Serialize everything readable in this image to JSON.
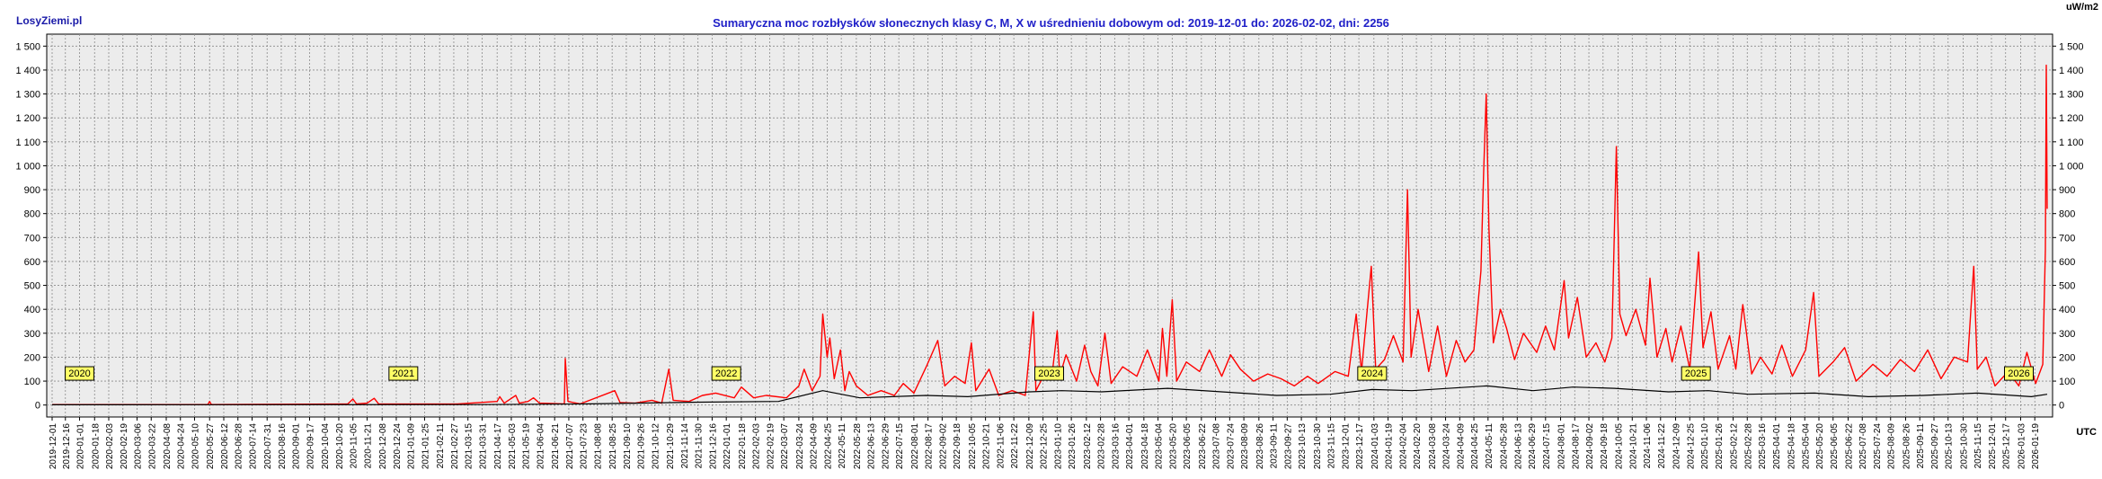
{
  "header": {
    "site_name": "LosyZiemi.pl",
    "unit": "uW/m2",
    "utc": "UTC"
  },
  "chart_data": {
    "type": "line",
    "title": "Sumaryczna moc rozbłysków słonecznych klasy C, M, X w uśrednieniu dobowym od: 2019-12-01 do: 2026-02-02, dni: 2256",
    "xlabel": "",
    "ylabel": "",
    "x_range": [
      "2019-12-01",
      "2026-02-02"
    ],
    "ylim": [
      -50,
      1550
    ],
    "y_ticks": [
      {
        "value": 0,
        "label": "0"
      },
      {
        "value": 100,
        "label": "100"
      },
      {
        "value": 200,
        "label": "200"
      },
      {
        "value": 300,
        "label": "300"
      },
      {
        "value": 400,
        "label": "400"
      },
      {
        "value": 500,
        "label": "500"
      },
      {
        "value": 600,
        "label": "600"
      },
      {
        "value": 700,
        "label": "700"
      },
      {
        "value": 800,
        "label": "800"
      },
      {
        "value": 900,
        "label": "900"
      },
      {
        "value": 1000,
        "label": "1 000"
      },
      {
        "value": 1100,
        "label": "1 100"
      },
      {
        "value": 1200,
        "label": "1 200"
      },
      {
        "value": 1300,
        "label": "1 300"
      },
      {
        "value": 1400,
        "label": "1 400"
      },
      {
        "value": 1500,
        "label": "1 500"
      }
    ],
    "x_tick_labels": [
      "2019-12-01",
      "2019-12-16",
      "2020-01-01",
      "2020-01-18",
      "2020-02-03",
      "2020-02-19",
      "2020-03-06",
      "2020-03-22",
      "2020-04-08",
      "2020-04-24",
      "2020-05-10",
      "2020-05-27",
      "2020-06-12",
      "2020-06-28",
      "2020-07-14",
      "2020-07-31",
      "2020-08-16",
      "2020-09-01",
      "2020-09-17",
      "2020-10-04",
      "2020-10-20",
      "2020-11-05",
      "2020-11-21",
      "2020-12-08",
      "2020-12-24",
      "2021-01-09",
      "2021-01-25",
      "2021-02-11",
      "2021-02-27",
      "2021-03-15",
      "2021-03-31",
      "2021-04-17",
      "2021-05-03",
      "2021-05-19",
      "2021-06-04",
      "2021-06-21",
      "2021-07-07",
      "2021-07-23",
      "2021-08-08",
      "2021-08-25",
      "2021-09-10",
      "2021-09-26",
      "2021-10-12",
      "2021-10-29",
      "2021-11-14",
      "2021-11-30",
      "2021-12-16",
      "2022-01-01",
      "2022-01-18",
      "2022-02-03",
      "2022-02-19",
      "2022-03-07",
      "2022-03-24",
      "2022-04-09",
      "2022-04-25",
      "2022-05-11",
      "2022-05-28",
      "2022-06-13",
      "2022-06-29",
      "2022-07-15",
      "2022-08-01",
      "2022-08-17",
      "2022-09-02",
      "2022-09-18",
      "2022-10-05",
      "2022-10-21",
      "2022-11-06",
      "2022-11-22",
      "2022-12-09",
      "2022-12-25",
      "2023-01-10",
      "2023-01-26",
      "2023-02-12",
      "2023-02-28",
      "2023-03-16",
      "2023-04-01",
      "2023-04-18",
      "2023-05-04",
      "2023-05-20",
      "2023-06-05",
      "2023-06-22",
      "2023-07-08",
      "2023-07-24",
      "2023-08-09",
      "2023-08-26",
      "2023-09-11",
      "2023-09-27",
      "2023-10-13",
      "2023-10-30",
      "2023-11-15",
      "2023-12-01",
      "2023-12-17",
      "2024-01-03",
      "2024-01-19",
      "2024-02-04",
      "2024-02-20",
      "2024-03-08",
      "2024-03-24",
      "2024-04-09",
      "2024-04-25",
      "2024-05-11",
      "2024-05-28",
      "2024-06-13",
      "2024-06-29",
      "2024-07-15",
      "2024-08-01",
      "2024-08-17",
      "2024-09-02",
      "2024-09-18",
      "2024-10-05",
      "2024-10-21",
      "2024-11-06",
      "2024-11-22",
      "2024-12-09",
      "2024-12-25",
      "2025-01-10",
      "2025-01-26",
      "2025-02-12",
      "2025-02-28",
      "2025-03-16",
      "2025-04-01",
      "2025-04-18",
      "2025-05-04",
      "2025-05-20",
      "2025-06-05",
      "2025-06-22",
      "2025-07-08",
      "2025-07-24",
      "2025-08-09",
      "2025-08-26",
      "2025-09-11",
      "2025-09-27",
      "2025-10-13",
      "2025-10-30",
      "2025-11-15",
      "2025-12-01",
      "2025-12-17",
      "2026-01-03",
      "2026-01-19"
    ],
    "year_markers": [
      {
        "label": "2020",
        "date": "2020-01-01"
      },
      {
        "label": "2021",
        "date": "2021-01-01"
      },
      {
        "label": "2022",
        "date": "2022-01-01"
      },
      {
        "label": "2023",
        "date": "2023-01-01"
      },
      {
        "label": "2024",
        "date": "2024-01-01"
      },
      {
        "label": "2025",
        "date": "2025-01-01"
      },
      {
        "label": "2026",
        "date": "2026-01-01"
      }
    ],
    "grid": true,
    "series": [
      {
        "name": "",
        "color": "#ff0000",
        "points": [
          [
            "2019-12-01",
            2
          ],
          [
            "2020-03-01",
            2
          ],
          [
            "2020-05-25",
            2
          ],
          [
            "2020-05-27",
            15
          ],
          [
            "2020-05-29",
            2
          ],
          [
            "2020-10-30",
            4
          ],
          [
            "2020-11-05",
            25
          ],
          [
            "2020-11-09",
            5
          ],
          [
            "2020-11-21",
            8
          ],
          [
            "2020-11-29",
            28
          ],
          [
            "2020-12-04",
            5
          ],
          [
            "2021-03-01",
            4
          ],
          [
            "2021-04-17",
            15
          ],
          [
            "2021-04-20",
            35
          ],
          [
            "2021-04-25",
            8
          ],
          [
            "2021-05-08",
            40
          ],
          [
            "2021-05-12",
            8
          ],
          [
            "2021-05-22",
            15
          ],
          [
            "2021-05-28",
            30
          ],
          [
            "2021-06-04",
            8
          ],
          [
            "2021-07-02",
            5
          ],
          [
            "2021-07-03",
            195
          ],
          [
            "2021-07-06",
            15
          ],
          [
            "2021-07-20",
            5
          ],
          [
            "2021-08-28",
            60
          ],
          [
            "2021-09-03",
            10
          ],
          [
            "2021-09-20",
            8
          ],
          [
            "2021-10-09",
            20
          ],
          [
            "2021-10-20",
            8
          ],
          [
            "2021-10-28",
            150
          ],
          [
            "2021-11-02",
            20
          ],
          [
            "2021-11-20",
            15
          ],
          [
            "2021-12-05",
            40
          ],
          [
            "2021-12-20",
            50
          ],
          [
            "2022-01-10",
            30
          ],
          [
            "2022-01-18",
            75
          ],
          [
            "2022-02-01",
            30
          ],
          [
            "2022-02-15",
            40
          ],
          [
            "2022-03-10",
            30
          ],
          [
            "2022-03-24",
            80
          ],
          [
            "2022-03-30",
            150
          ],
          [
            "2022-04-08",
            60
          ],
          [
            "2022-04-17",
            120
          ],
          [
            "2022-04-20",
            380
          ],
          [
            "2022-04-25",
            200
          ],
          [
            "2022-04-28",
            280
          ],
          [
            "2022-05-03",
            110
          ],
          [
            "2022-05-10",
            230
          ],
          [
            "2022-05-15",
            60
          ],
          [
            "2022-05-20",
            140
          ],
          [
            "2022-05-28",
            80
          ],
          [
            "2022-06-10",
            40
          ],
          [
            "2022-06-25",
            60
          ],
          [
            "2022-07-10",
            40
          ],
          [
            "2022-07-20",
            90
          ],
          [
            "2022-08-01",
            50
          ],
          [
            "2022-08-15",
            160
          ],
          [
            "2022-08-28",
            270
          ],
          [
            "2022-09-05",
            80
          ],
          [
            "2022-09-16",
            120
          ],
          [
            "2022-09-28",
            90
          ],
          [
            "2022-10-05",
            260
          ],
          [
            "2022-10-10",
            60
          ],
          [
            "2022-10-25",
            150
          ],
          [
            "2022-11-05",
            40
          ],
          [
            "2022-11-20",
            60
          ],
          [
            "2022-12-05",
            40
          ],
          [
            "2022-12-14",
            390
          ],
          [
            "2022-12-17",
            60
          ],
          [
            "2022-12-24",
            110
          ],
          [
            "2023-01-05",
            150
          ],
          [
            "2023-01-10",
            310
          ],
          [
            "2023-01-13",
            120
          ],
          [
            "2023-01-20",
            210
          ],
          [
            "2023-02-01",
            100
          ],
          [
            "2023-02-10",
            250
          ],
          [
            "2023-02-17",
            140
          ],
          [
            "2023-02-25",
            80
          ],
          [
            "2023-03-05",
            300
          ],
          [
            "2023-03-12",
            90
          ],
          [
            "2023-03-25",
            160
          ],
          [
            "2023-04-10",
            120
          ],
          [
            "2023-04-22",
            230
          ],
          [
            "2023-05-05",
            100
          ],
          [
            "2023-05-09",
            320
          ],
          [
            "2023-05-14",
            120
          ],
          [
            "2023-05-20",
            440
          ],
          [
            "2023-05-25",
            100
          ],
          [
            "2023-06-05",
            180
          ],
          [
            "2023-06-20",
            140
          ],
          [
            "2023-07-01",
            230
          ],
          [
            "2023-07-15",
            120
          ],
          [
            "2023-07-25",
            210
          ],
          [
            "2023-08-05",
            150
          ],
          [
            "2023-08-20",
            100
          ],
          [
            "2023-09-05",
            130
          ],
          [
            "2023-09-20",
            110
          ],
          [
            "2023-10-05",
            80
          ],
          [
            "2023-10-20",
            120
          ],
          [
            "2023-11-01",
            90
          ],
          [
            "2023-11-20",
            140
          ],
          [
            "2023-12-05",
            120
          ],
          [
            "2023-12-14",
            380
          ],
          [
            "2023-12-20",
            140
          ],
          [
            "2023-12-31",
            580
          ],
          [
            "2024-01-05",
            150
          ],
          [
            "2024-01-15",
            190
          ],
          [
            "2024-01-25",
            290
          ],
          [
            "2024-02-05",
            180
          ],
          [
            "2024-02-10",
            900
          ],
          [
            "2024-02-14",
            200
          ],
          [
            "2024-02-22",
            400
          ],
          [
            "2024-03-05",
            140
          ],
          [
            "2024-03-15",
            330
          ],
          [
            "2024-03-25",
            120
          ],
          [
            "2024-04-05",
            270
          ],
          [
            "2024-04-15",
            180
          ],
          [
            "2024-04-25",
            230
          ],
          [
            "2024-05-03",
            560
          ],
          [
            "2024-05-06",
            970
          ],
          [
            "2024-05-09",
            1300
          ],
          [
            "2024-05-12",
            740
          ],
          [
            "2024-05-17",
            260
          ],
          [
            "2024-05-25",
            400
          ],
          [
            "2024-06-01",
            320
          ],
          [
            "2024-06-10",
            190
          ],
          [
            "2024-06-20",
            300
          ],
          [
            "2024-07-05",
            220
          ],
          [
            "2024-07-15",
            330
          ],
          [
            "2024-07-25",
            230
          ],
          [
            "2024-08-05",
            520
          ],
          [
            "2024-08-10",
            280
          ],
          [
            "2024-08-20",
            450
          ],
          [
            "2024-08-30",
            200
          ],
          [
            "2024-09-10",
            260
          ],
          [
            "2024-09-20",
            180
          ],
          [
            "2024-09-28",
            280
          ],
          [
            "2024-10-03",
            1080
          ],
          [
            "2024-10-07",
            380
          ],
          [
            "2024-10-14",
            290
          ],
          [
            "2024-10-25",
            400
          ],
          [
            "2024-11-05",
            250
          ],
          [
            "2024-11-10",
            530
          ],
          [
            "2024-11-18",
            200
          ],
          [
            "2024-11-28",
            320
          ],
          [
            "2024-12-05",
            180
          ],
          [
            "2024-12-15",
            330
          ],
          [
            "2024-12-25",
            150
          ],
          [
            "2025-01-04",
            640
          ],
          [
            "2025-01-09",
            240
          ],
          [
            "2025-01-18",
            390
          ],
          [
            "2025-01-26",
            150
          ],
          [
            "2025-02-08",
            290
          ],
          [
            "2025-02-15",
            150
          ],
          [
            "2025-02-23",
            420
          ],
          [
            "2025-03-05",
            130
          ],
          [
            "2025-03-15",
            200
          ],
          [
            "2025-03-28",
            130
          ],
          [
            "2025-04-08",
            250
          ],
          [
            "2025-04-20",
            120
          ],
          [
            "2025-05-05",
            230
          ],
          [
            "2025-05-14",
            470
          ],
          [
            "2025-05-20",
            120
          ],
          [
            "2025-06-05",
            180
          ],
          [
            "2025-06-18",
            240
          ],
          [
            "2025-07-01",
            100
          ],
          [
            "2025-07-20",
            170
          ],
          [
            "2025-08-05",
            120
          ],
          [
            "2025-08-20",
            190
          ],
          [
            "2025-09-05",
            140
          ],
          [
            "2025-09-20",
            230
          ],
          [
            "2025-10-05",
            110
          ],
          [
            "2025-10-20",
            200
          ],
          [
            "2025-11-04",
            180
          ],
          [
            "2025-11-08",
            410
          ],
          [
            "2025-11-11",
            580
          ],
          [
            "2025-11-15",
            150
          ],
          [
            "2025-11-25",
            200
          ],
          [
            "2025-12-05",
            80
          ],
          [
            "2025-12-20",
            140
          ],
          [
            "2026-01-01",
            80
          ],
          [
            "2026-01-10",
            220
          ],
          [
            "2026-01-20",
            90
          ],
          [
            "2026-01-28",
            170
          ],
          [
            "2026-01-31",
            650
          ],
          [
            "2026-02-01",
            1420
          ],
          [
            "2026-02-02",
            820
          ]
        ]
      },
      {
        "name": "",
        "color": "#000000",
        "points": [
          [
            "2019-12-01",
            1
          ],
          [
            "2021-04-01",
            2
          ],
          [
            "2021-08-01",
            5
          ],
          [
            "2021-12-01",
            12
          ],
          [
            "2022-03-01",
            15
          ],
          [
            "2022-04-20",
            60
          ],
          [
            "2022-06-01",
            30
          ],
          [
            "2022-08-15",
            40
          ],
          [
            "2022-10-01",
            35
          ],
          [
            "2022-12-10",
            55
          ],
          [
            "2023-01-15",
            60
          ],
          [
            "2023-03-01",
            55
          ],
          [
            "2023-05-15",
            70
          ],
          [
            "2023-07-15",
            55
          ],
          [
            "2023-09-15",
            40
          ],
          [
            "2023-11-15",
            45
          ],
          [
            "2024-01-01",
            65
          ],
          [
            "2024-02-15",
            60
          ],
          [
            "2024-05-10",
            80
          ],
          [
            "2024-07-01",
            60
          ],
          [
            "2024-08-15",
            75
          ],
          [
            "2024-10-01",
            70
          ],
          [
            "2024-12-01",
            55
          ],
          [
            "2025-01-15",
            60
          ],
          [
            "2025-03-01",
            45
          ],
          [
            "2025-05-15",
            50
          ],
          [
            "2025-07-15",
            35
          ],
          [
            "2025-09-15",
            40
          ],
          [
            "2025-11-15",
            50
          ],
          [
            "2026-01-15",
            35
          ],
          [
            "2026-02-02",
            45
          ]
        ]
      }
    ]
  }
}
